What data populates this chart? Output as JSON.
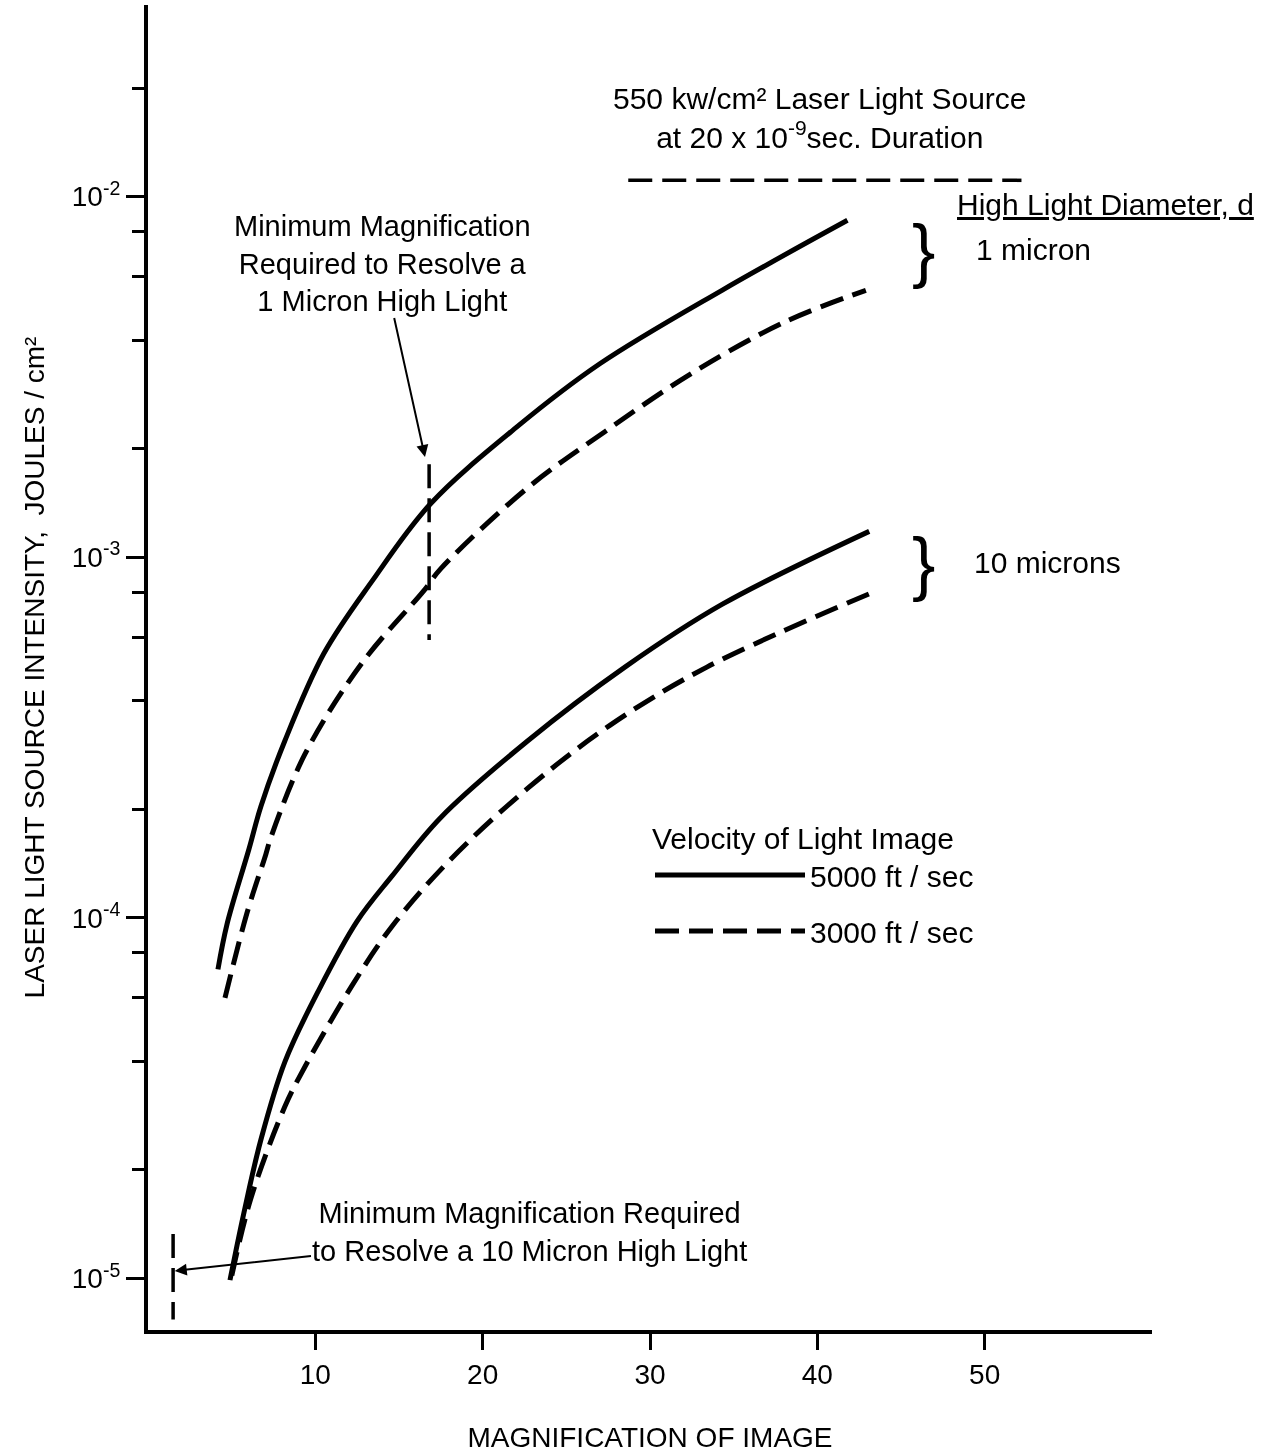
{
  "chart_data": {
    "type": "line",
    "xlabel": "MAGNIFICATION OF IMAGE",
    "ylabel": "LASER LIGHT SOURCE INTENSITY,  JOULES / cm²",
    "legend_title": "Velocity of Light Image",
    "log": "y",
    "xlim": [
      0,
      60
    ],
    "xticks": [
      10,
      20,
      30,
      40,
      50
    ],
    "ylim": [
      7.2e-06,
      0.034
    ],
    "yticks": [
      {
        "value": 1e-05,
        "label": "10$^{-5}$"
      },
      {
        "value": 2e-05,
        "label": null
      },
      {
        "value": 4e-05,
        "label": null
      },
      {
        "value": 6e-05,
        "label": null
      },
      {
        "value": 8e-05,
        "label": null
      },
      {
        "value": 0.0001,
        "label": "10$^{-4}$"
      },
      {
        "value": 0.0002,
        "label": null
      },
      {
        "value": 0.0004,
        "label": null
      },
      {
        "value": 0.0006,
        "label": null
      },
      {
        "value": 0.0008,
        "label": null
      },
      {
        "value": 0.001,
        "label": "10$^{-3}$"
      },
      {
        "value": 0.002,
        "label": null
      },
      {
        "value": 0.004,
        "label": null
      },
      {
        "value": 0.006,
        "label": null
      },
      {
        "value": 0.008,
        "label": null
      },
      {
        "value": 0.01,
        "label": "10$^{-2}$"
      },
      {
        "value": 0.02,
        "label": null
      }
    ],
    "legend": "right",
    "marker": "none",
    "series": [
      {
        "name": "5000 ft / sec",
        "color": "#000000",
        "line_style": "solid",
        "x": [
          4.18,
          4.72,
          6.03,
          6.75,
          8.18,
          10.5,
          13.4,
          16.9,
          22.1,
          27.0,
          34.3,
          41.8
        ],
        "values": [
          7.2e-05,
          9.6e-05,
          0.000155,
          0.000204,
          0.00031,
          0.00054,
          0.00086,
          0.00141,
          0.00231,
          0.00344,
          0.0055,
          0.0086
        ]
      },
      {
        "name": "3000 ft / sec",
        "color": "#000000",
        "line_style": "dashed",
        "x": [
          4.6,
          5.91,
          7.04,
          7.34,
          9.37,
          12.8,
          16.5,
          17.5,
          22.7,
          27.3,
          32.5,
          38.0,
          42.9
        ],
        "values": [
          6e-05,
          0.000103,
          0.00015,
          0.000167,
          0.000284,
          0.00051,
          0.00081,
          0.00093,
          0.00156,
          0.00223,
          0.00324,
          0.00448,
          0.0055
        ]
      },
      {
        "color": "#000000",
        "line_style": "solid",
        "x": [
          4.9,
          5.73,
          6.75,
          8.18,
          10.2,
          12.5,
          14.6,
          17.5,
          22.7,
          28.5,
          34.3,
          43.1
        ],
        "values": [
          9.9e-06,
          1.52e-05,
          2.43e-05,
          3.99e-05,
          6.3e-05,
          9.8e-05,
          0.000131,
          0.00019,
          0.00031,
          0.000496,
          0.00074,
          0.00118
        ]
      },
      {
        "color": "#000000",
        "line_style": "dashed",
        "x": [
          5.01,
          6.15,
          8.18,
          9.37,
          12.2,
          14.6,
          18.0,
          22.7,
          27.6,
          33.4,
          43.6
        ],
        "values": [
          1.02e-05,
          1.67e-05,
          3e-05,
          3.86e-05,
          6.5e-05,
          9.5e-05,
          0.000144,
          0.000229,
          0.000342,
          0.000496,
          0.00081
        ]
      },
      {
        "color": "#000000",
        "line_style": "dashed",
        "x": [
          16.8,
          16.8
        ],
        "values": [
          0.00181,
          0.00059
        ]
      },
      {
        "color": "#000000",
        "line_style": "dashed",
        "x": [
          1.5,
          1.5
        ],
        "values": [
          1.33e-05,
          7.7e-06
        ]
      },
      {
        "color": "#000000",
        "line_style": "dashed",
        "x": [
          28.7,
          52.2
        ],
        "values": [
          0.0111,
          0.0111
        ]
      }
    ],
    "annotations": [
      "550 kw/cm² Laser Light Source\nat 20 x 10$^{-9}$sec. Duration",
      "Minimum Magnification\nRequired to Resolve a\n1 Micron High Light",
      {
        "text": "Minimum Magnification Required\nto Resolve a 10 Micron High Light",
        "x": 1.6,
        "y": 1.05e-05
      },
      "High Light Diameter, d",
      "1 micron",
      "10 microns",
      "}",
      "}"
    ]
  }
}
